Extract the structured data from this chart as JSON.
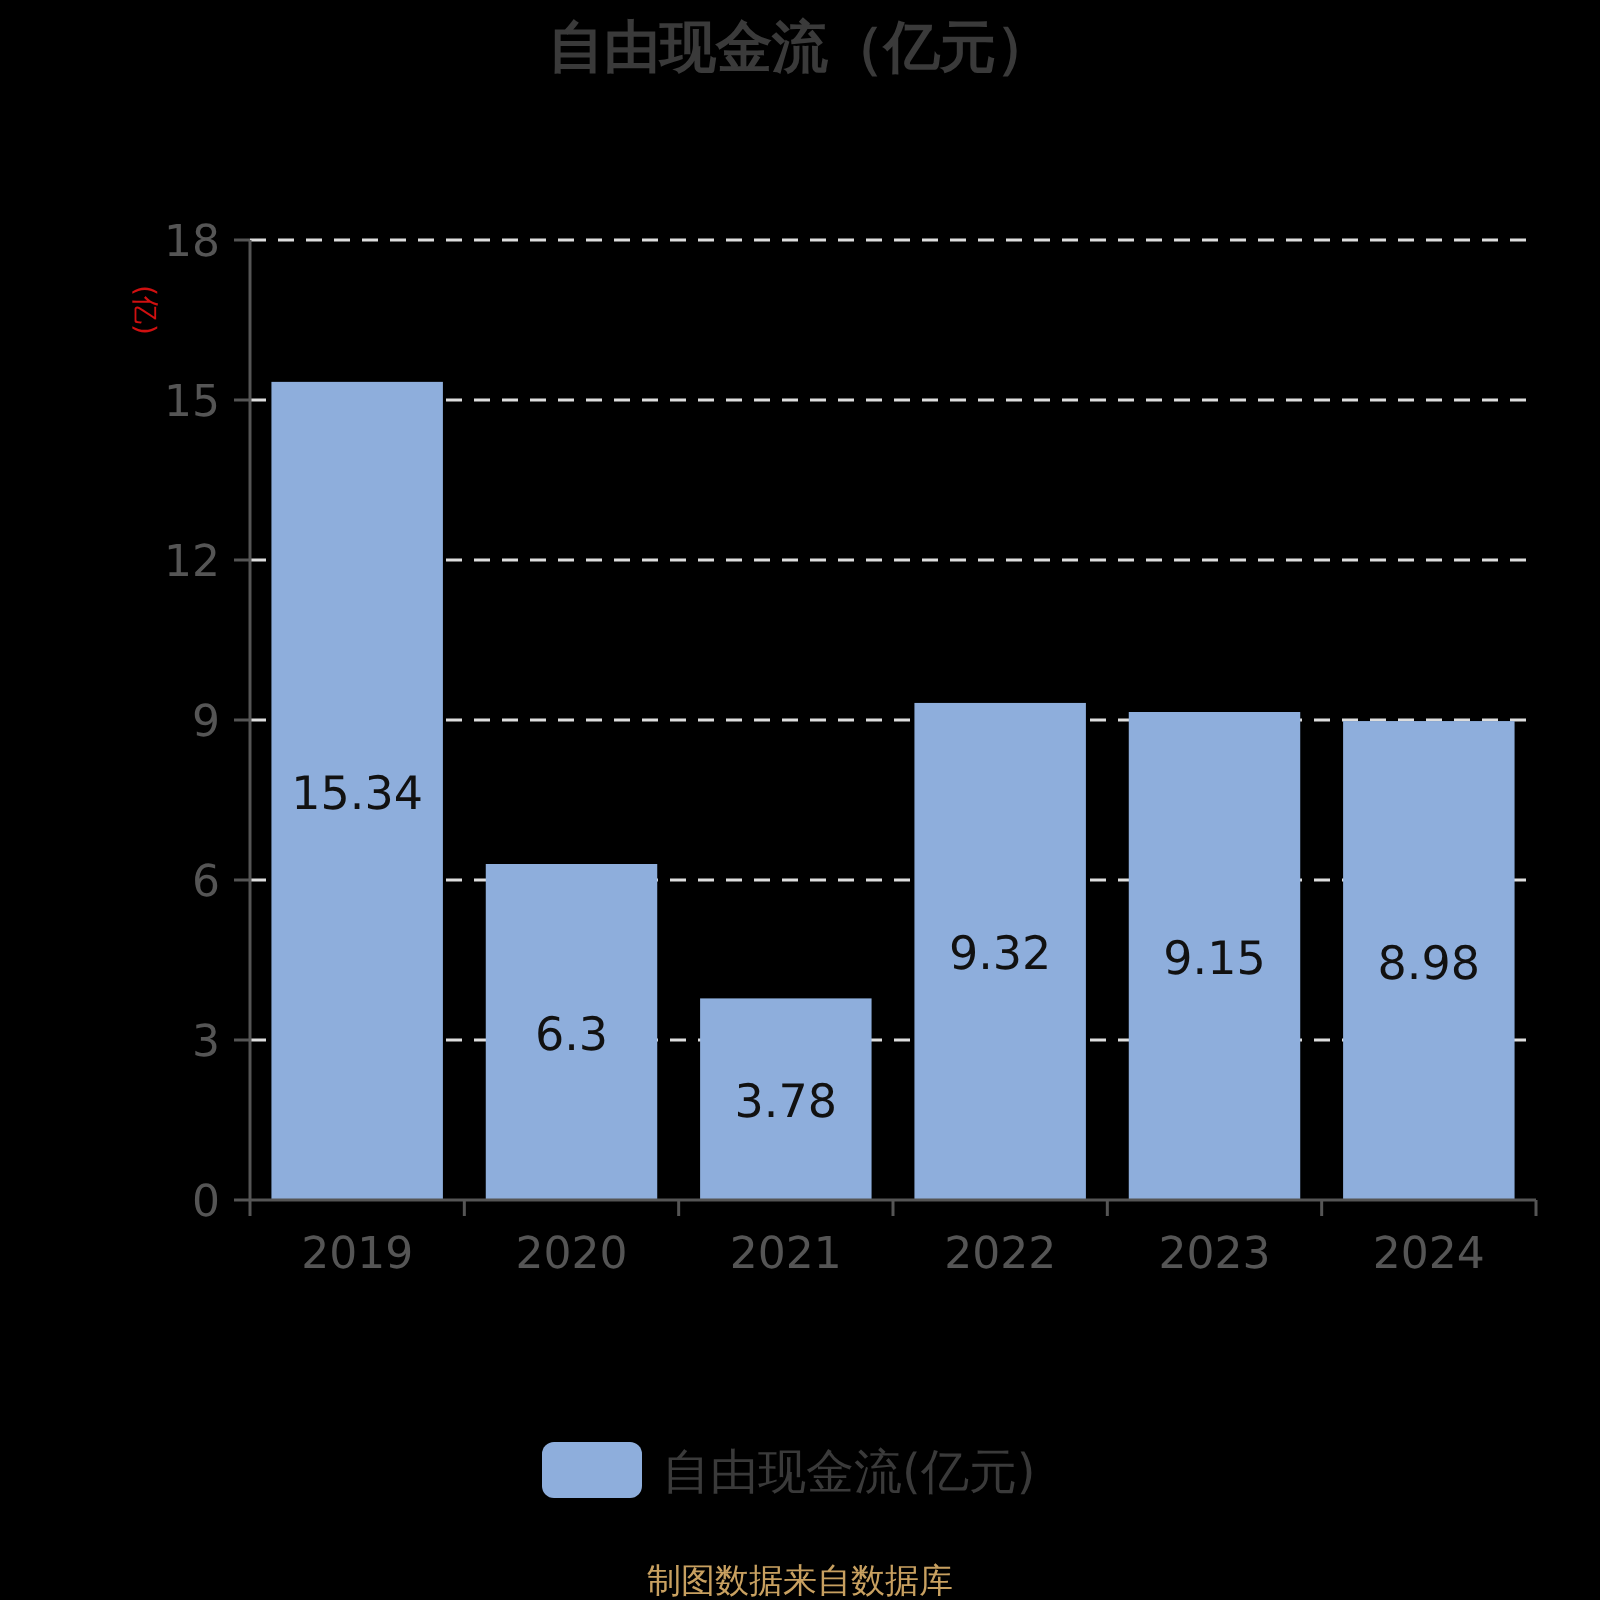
{
  "chart_data": {
    "type": "bar",
    "title": "自由现金流（亿元）",
    "ylabel": "(亿)",
    "categories": [
      "2019",
      "2020",
      "2021",
      "2022",
      "2023",
      "2024"
    ],
    "series": [
      {
        "name": "自由现金流(亿元)",
        "color": "#8eaedc",
        "values": [
          15.34,
          6.3,
          3.78,
          9.32,
          9.15,
          8.98
        ]
      }
    ],
    "ylim": [
      0,
      18
    ],
    "yticks": [
      0,
      3,
      6,
      9,
      12,
      15,
      18
    ],
    "grid": "y",
    "legend": "bottom",
    "data_labels": true,
    "annotations": [
      "制图数据来自数据库"
    ]
  }
}
